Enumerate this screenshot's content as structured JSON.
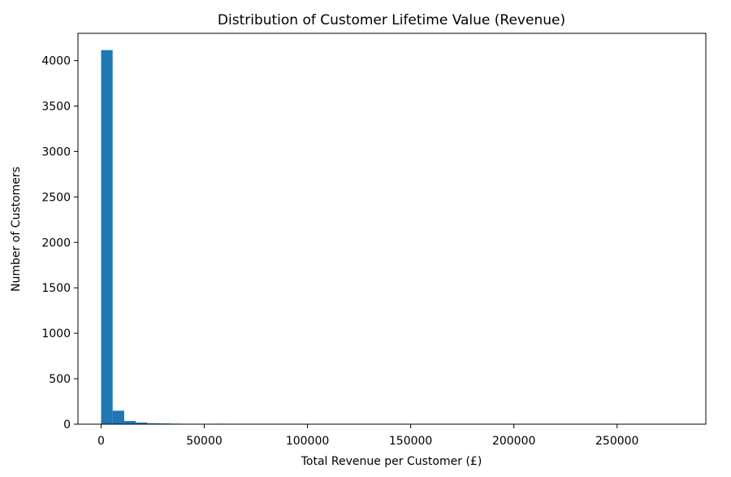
{
  "chart_data": {
    "type": "bar",
    "title": "Distribution of Customer Lifetime Value (Revenue)",
    "xlabel": "Total Revenue per Customer (£)",
    "ylabel": "Number of Customers",
    "xlim": [
      -11200,
      293000
    ],
    "ylim": [
      0,
      4300
    ],
    "grid": false,
    "bar_color": "#1f77b4",
    "bin_width": 5600,
    "bin_starts": [
      0,
      5600,
      11200,
      16800,
      22400,
      28000,
      33600,
      39200,
      44800,
      50400,
      56000,
      61600,
      67200,
      72800,
      78400,
      84000,
      89600,
      95200,
      100800,
      106400,
      112000,
      117600,
      123200,
      128800,
      134400,
      140000,
      145600,
      151200,
      156800,
      162400,
      168000,
      173600,
      179200,
      184800,
      190400,
      196000,
      201600,
      207200,
      212800,
      218400,
      224000,
      229600,
      235200,
      240800,
      246400,
      252000,
      257600,
      263200,
      268800,
      274400
    ],
    "values": [
      4115,
      148,
      35,
      18,
      10,
      8,
      6,
      4,
      2,
      4,
      5,
      3,
      0,
      0,
      0,
      0,
      0,
      0,
      0,
      0,
      0,
      0,
      0,
      0,
      0,
      0,
      0,
      0,
      0,
      0,
      0,
      0,
      0,
      0,
      0,
      0,
      0,
      0,
      0,
      0,
      0,
      0,
      0,
      0,
      0,
      0,
      0,
      0,
      0,
      1
    ],
    "x_ticks": [
      0,
      50000,
      100000,
      150000,
      200000,
      250000
    ],
    "x_tick_labels": [
      "0",
      "50000",
      "100000",
      "150000",
      "200000",
      "250000"
    ],
    "y_ticks": [
      0,
      500,
      1000,
      1500,
      2000,
      2500,
      3000,
      3500,
      4000
    ],
    "y_tick_labels": [
      "0",
      "500",
      "1000",
      "1500",
      "2000",
      "2500",
      "3000",
      "3500",
      "4000"
    ]
  }
}
